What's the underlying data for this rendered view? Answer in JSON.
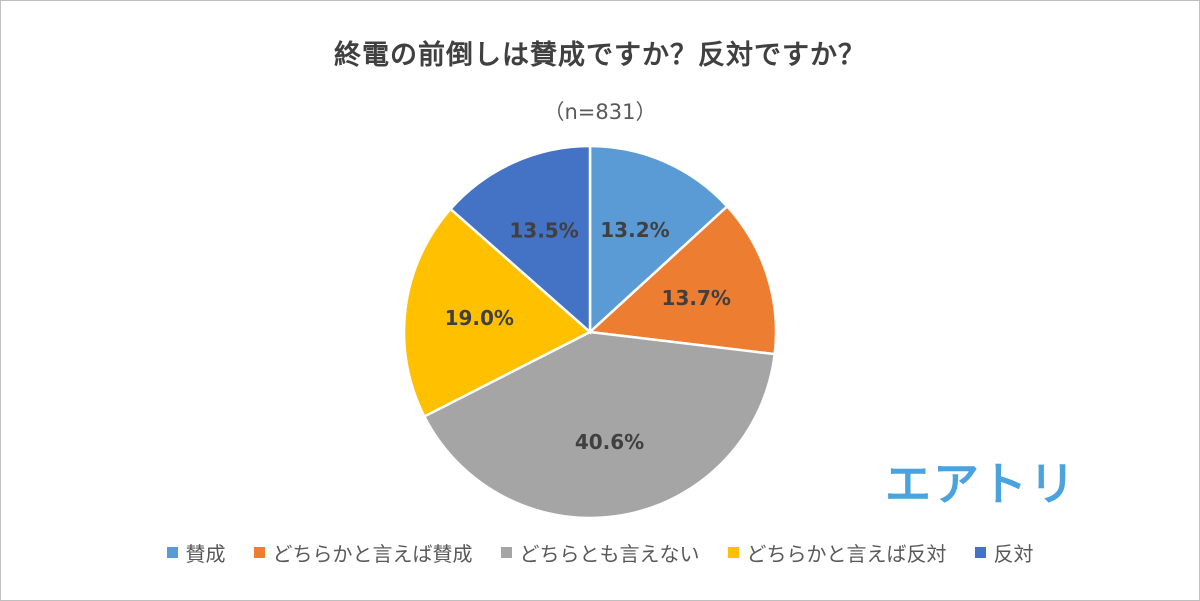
{
  "chart_data": {
    "type": "pie",
    "title": "終電の前倒しは賛成ですか？反対ですか？",
    "subtitle": "（n=831）",
    "legend_position": "bottom",
    "slices": [
      {
        "name": "賛成",
        "value": 13.2,
        "label": "13.2%",
        "color": "#5b9bd5"
      },
      {
        "name": "どちらかと言えば賛成",
        "value": 13.7,
        "label": "13.7%",
        "color": "#ed7d31"
      },
      {
        "name": "どちらとも言えない",
        "value": 40.6,
        "label": "40.6%",
        "color": "#a5a5a5"
      },
      {
        "name": "どちらかと言えば反対",
        "value": 19.0,
        "label": "19.0%",
        "color": "#ffc000"
      },
      {
        "name": "反対",
        "value": 13.5,
        "label": "13.5%",
        "color": "#4472c4"
      }
    ]
  },
  "logo": {
    "text": "エアトリ",
    "color": "#4aa3df"
  }
}
